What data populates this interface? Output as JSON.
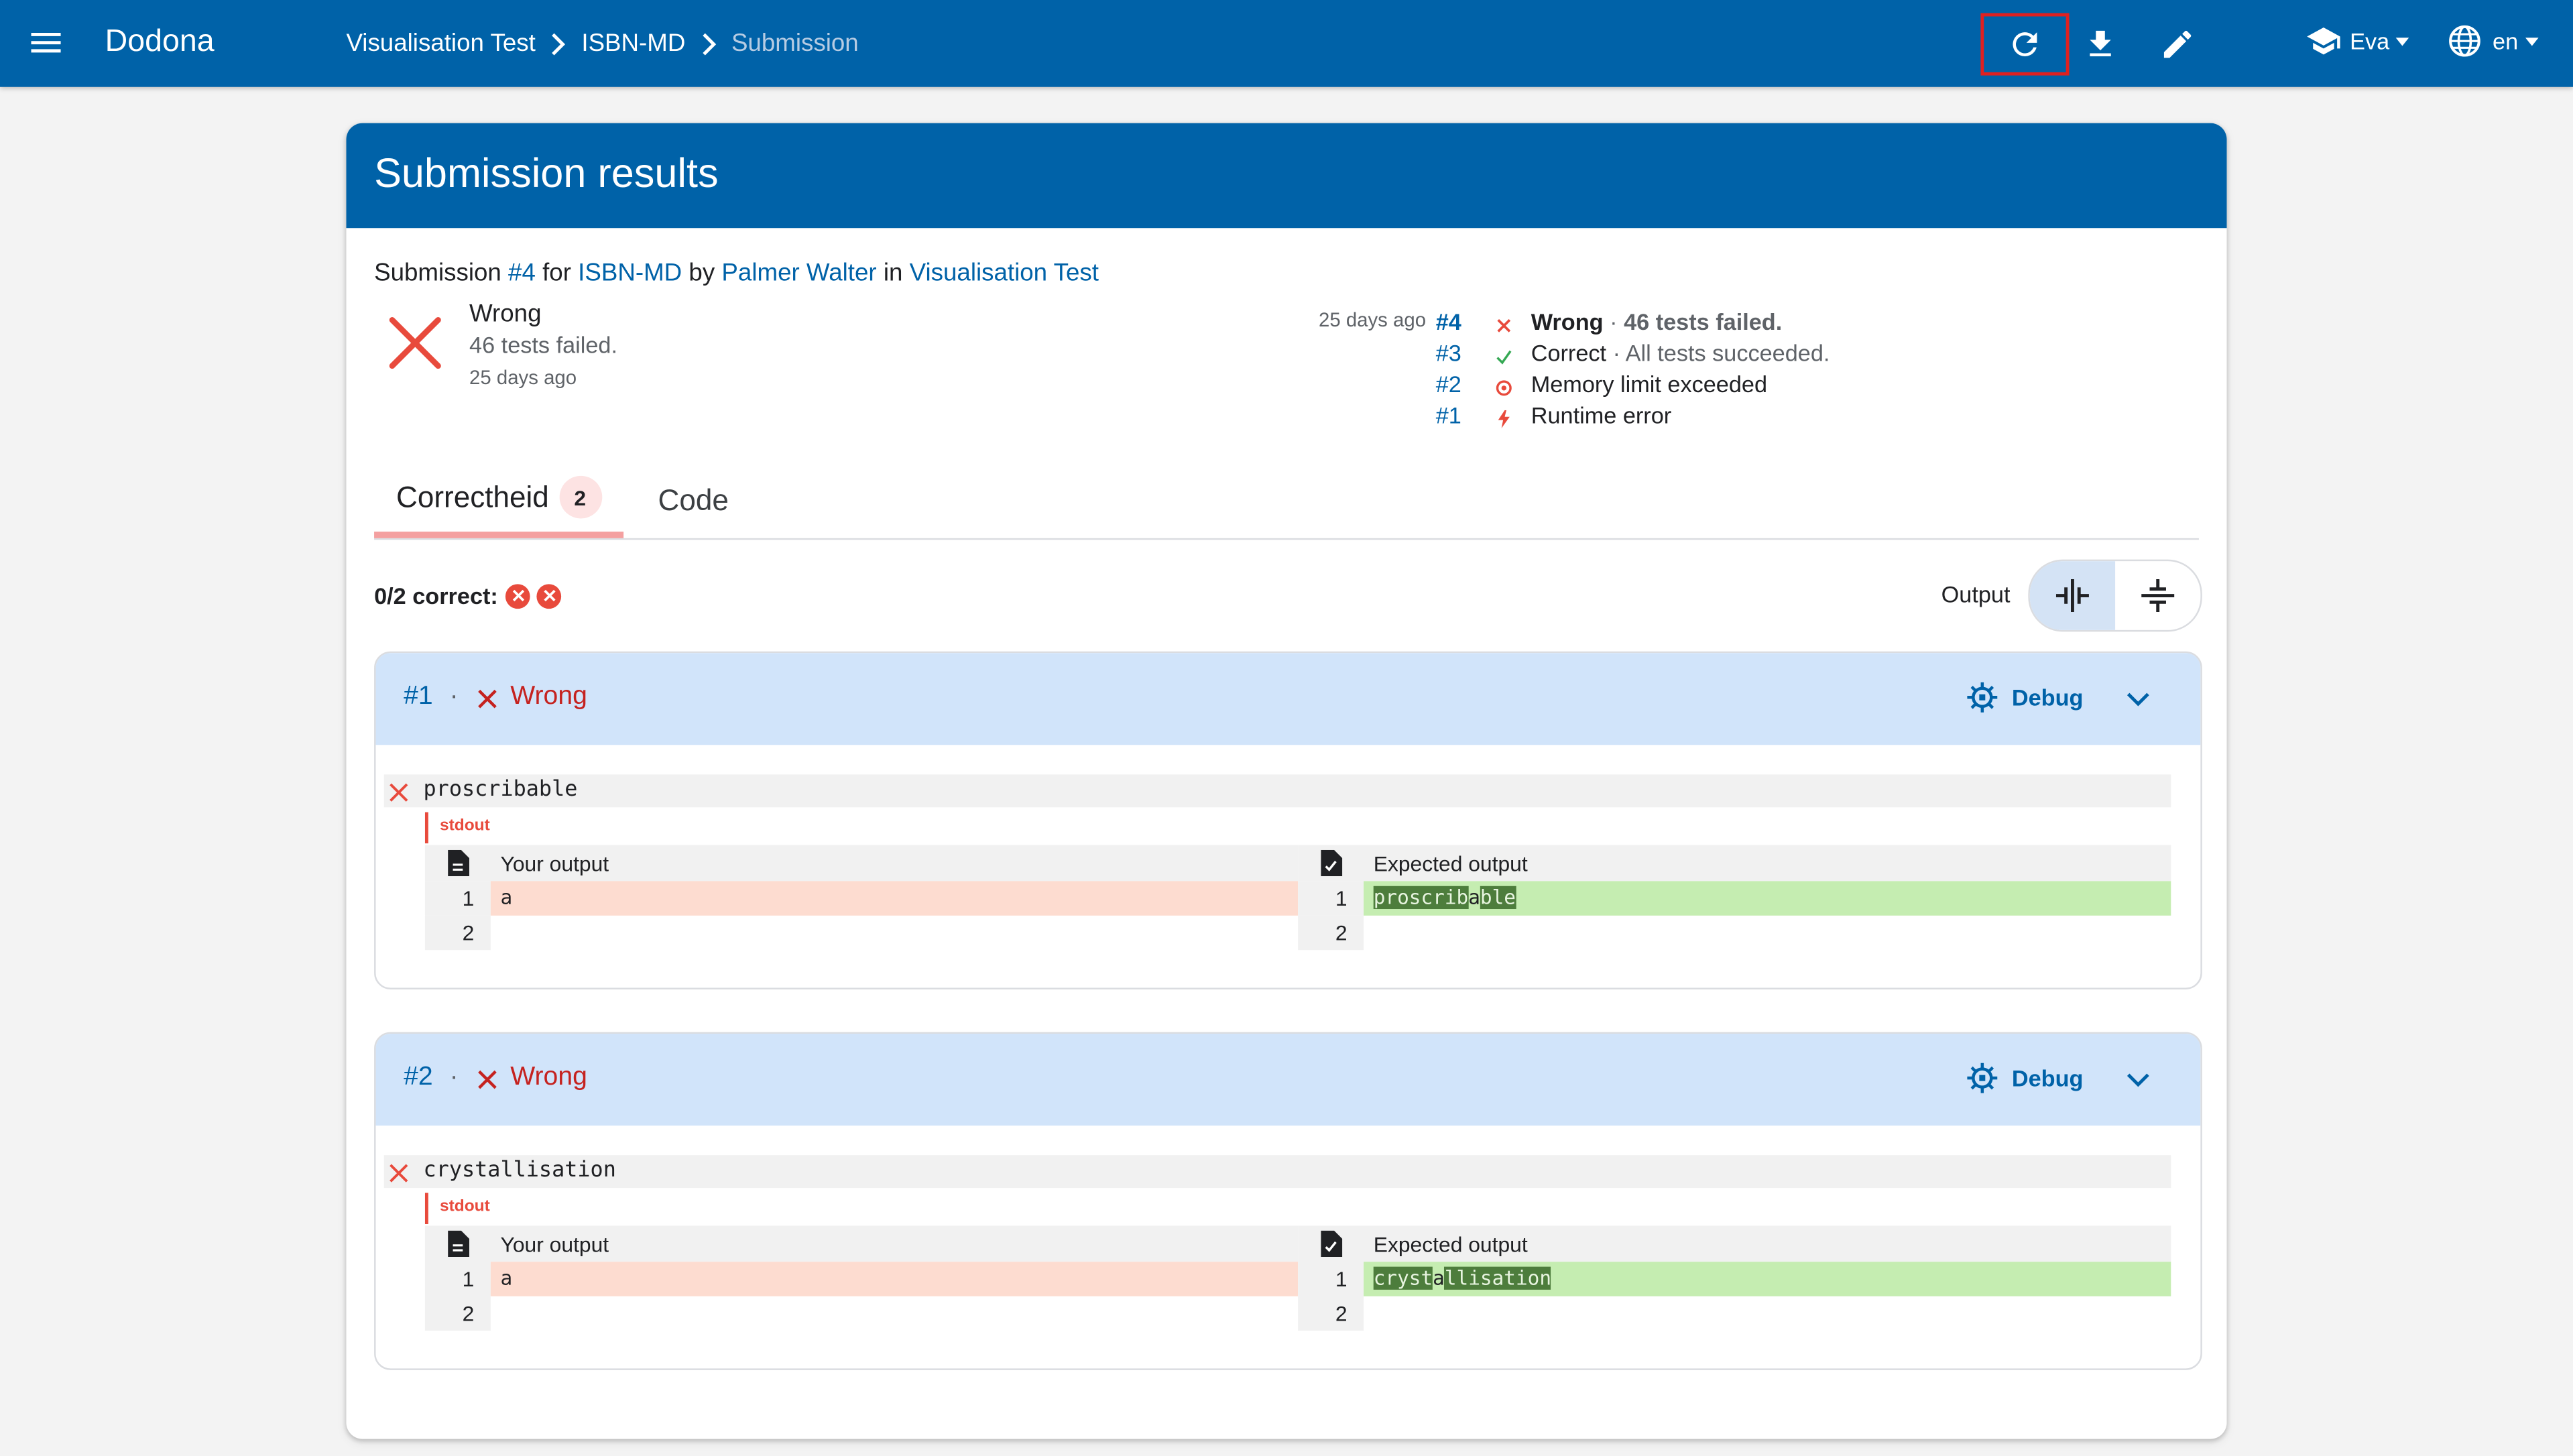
{
  "topbar": {
    "brand": "Dodona",
    "breadcrumbs": [
      "Visualisation Test",
      "ISBN-MD",
      "Submission"
    ],
    "user": "Eva",
    "language": "en"
  },
  "card": {
    "title": "Submission results",
    "summary": {
      "prefix": "Submission ",
      "submission_link": "#4",
      "for": " for ",
      "exercise_link": "ISBN-MD",
      "by": " by ",
      "user_link": "Palmer Walter",
      "in": " in ",
      "course_link": "Visualisation Test"
    },
    "status": {
      "title": "Wrong",
      "subtitle": "46 tests failed.",
      "time": "25 days ago"
    },
    "history": [
      {
        "time": "25 days ago",
        "id": "#4",
        "status": "Wrong",
        "detail": "46 tests failed.",
        "icon": "x-icon",
        "color": "#e84a3c"
      },
      {
        "time": "",
        "id": "#3",
        "status": "Correct",
        "detail": "All tests succeeded.",
        "icon": "check-icon",
        "color": "#34a853"
      },
      {
        "time": "",
        "id": "#2",
        "status": "Memory limit exceeded",
        "detail": "",
        "icon": "memory-icon",
        "color": "#e84a3c"
      },
      {
        "time": "",
        "id": "#1",
        "status": "Runtime error",
        "detail": "",
        "icon": "flash-icon",
        "color": "#e84a3c"
      }
    ]
  },
  "tabs": [
    {
      "label": "Correctheid",
      "badge": "2",
      "active": true
    },
    {
      "label": "Code",
      "active": false
    }
  ],
  "correct_summary": "0/2 correct:",
  "output_label": "Output",
  "groups": [
    {
      "num": "#1",
      "dot": "·",
      "status": "Wrong",
      "debug": "Debug",
      "input": "proscribable",
      "channel": "stdout",
      "your_output_label": "Your output",
      "expected_output_label": "Expected output",
      "your_lines": [
        "a",
        ""
      ],
      "expected_parts": [
        "proscrib",
        "a",
        "ble"
      ],
      "line_numbers": [
        "1",
        "2"
      ]
    },
    {
      "num": "#2",
      "dot": "·",
      "status": "Wrong",
      "debug": "Debug",
      "input": "crystallisation",
      "channel": "stdout",
      "your_output_label": "Your output",
      "expected_output_label": "Expected output",
      "your_lines": [
        "a",
        ""
      ],
      "expected_parts": [
        "cryst",
        "a",
        "llisation"
      ],
      "line_numbers": [
        "1",
        "2"
      ]
    }
  ],
  "colors": {
    "primary": "#0062a8",
    "error": "#e84a3c",
    "success": "#34a853",
    "group_header": "#d1e4fa"
  }
}
